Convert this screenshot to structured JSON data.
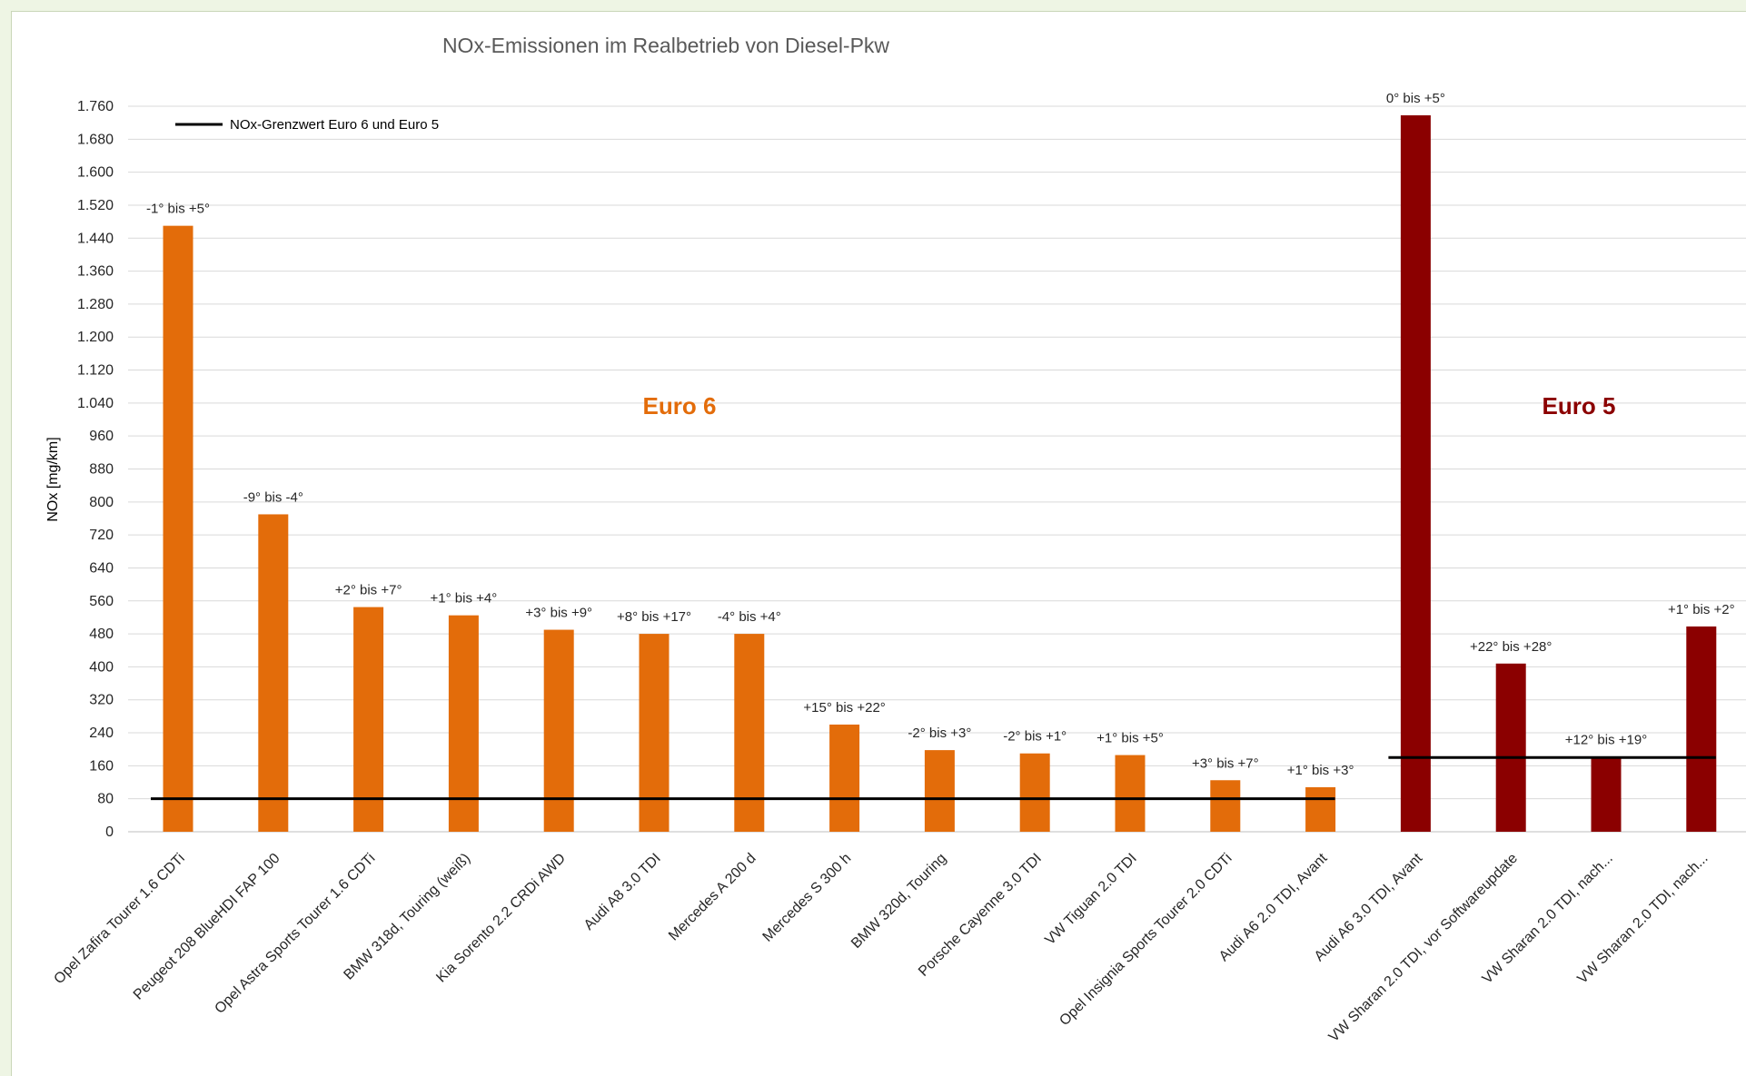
{
  "chart_data": {
    "type": "bar",
    "title": "NOx-Emissionen im Realbetrieb von Diesel-Pkw",
    "ylabel": "NOx [mg/km]",
    "xlabel": "",
    "ylim": [
      0,
      1760
    ],
    "yticks": [
      0,
      80,
      160,
      240,
      320,
      400,
      480,
      560,
      640,
      720,
      800,
      880,
      960,
      1040,
      1120,
      1200,
      1280,
      1360,
      1440,
      1520,
      1600,
      1680,
      1760
    ],
    "ytick_labels": [
      "0",
      "80",
      "160",
      "240",
      "320",
      "400",
      "480",
      "560",
      "640",
      "720",
      "800",
      "880",
      "960",
      "1.040",
      "1.120",
      "1.200",
      "1.280",
      "1.360",
      "1.440",
      "1.520",
      "1.600",
      "1.680",
      "1.760"
    ],
    "grid": true,
    "categories": [
      "Opel Zafira Tourer 1.6 CDTi",
      "Peugeot 208 BlueHDI FAP 100",
      "Opel Astra Sports Tourer 1.6 CDTi",
      "BMW 318d, Touring (weiß)",
      "Kia Sorento 2.2 CRDi AWD",
      "Audi A8 3.0 TDI",
      "Mercedes A 200 d",
      "Mercedes S 300 h",
      "BMW 320d, Touring",
      "Porsche Cayenne 3.0 TDI",
      "VW Tiguan 2.0 TDI",
      "Opel Insignia Sports Tourer 2.0 CDTi",
      "Audi A6 2.0 TDI, Avant",
      "Audi A6 3.0 TDI, Avant",
      "VW Sharan 2.0 TDI, vor Softwareupdate",
      "VW Sharan 2.0 TDI, nach...",
      "VW Sharan 2.0 TDI, nach..."
    ],
    "values": [
      1470,
      770,
      545,
      525,
      490,
      480,
      480,
      260,
      198,
      190,
      186,
      125,
      108,
      1738,
      408,
      182,
      498
    ],
    "data_labels": [
      "-1° bis +5°",
      "-9° bis -4°",
      "+2° bis +7°",
      "+1° bis +4°",
      "+3° bis +9°",
      "+8° bis +17°",
      "-4° bis +4°",
      "+15° bis +22°",
      "-2° bis +3°",
      "-2° bis +1°",
      "+1° bis +5°",
      "+3° bis +7°",
      "+1° bis +3°",
      "0° bis +5°",
      "+22° bis +28°",
      "+12° bis +19°",
      "+1° bis +2°"
    ],
    "bar_colors": [
      "#e36c0a",
      "#e36c0a",
      "#e36c0a",
      "#e36c0a",
      "#e36c0a",
      "#e36c0a",
      "#e36c0a",
      "#e36c0a",
      "#e36c0a",
      "#e36c0a",
      "#e36c0a",
      "#e36c0a",
      "#e36c0a",
      "#8b0000",
      "#8b0000",
      "#8b0000",
      "#8b0000"
    ],
    "groups": [
      {
        "label": "Euro 6",
        "color": "#e36c0a",
        "first": 0,
        "last": 12,
        "limit": 80
      },
      {
        "label": "Euro 5",
        "color": "#8b0000",
        "first": 13,
        "last": 16,
        "limit": 180
      }
    ],
    "legend": {
      "entry": "NOx-Grenzwert Euro 6 und Euro 5",
      "position": "top-left"
    }
  }
}
